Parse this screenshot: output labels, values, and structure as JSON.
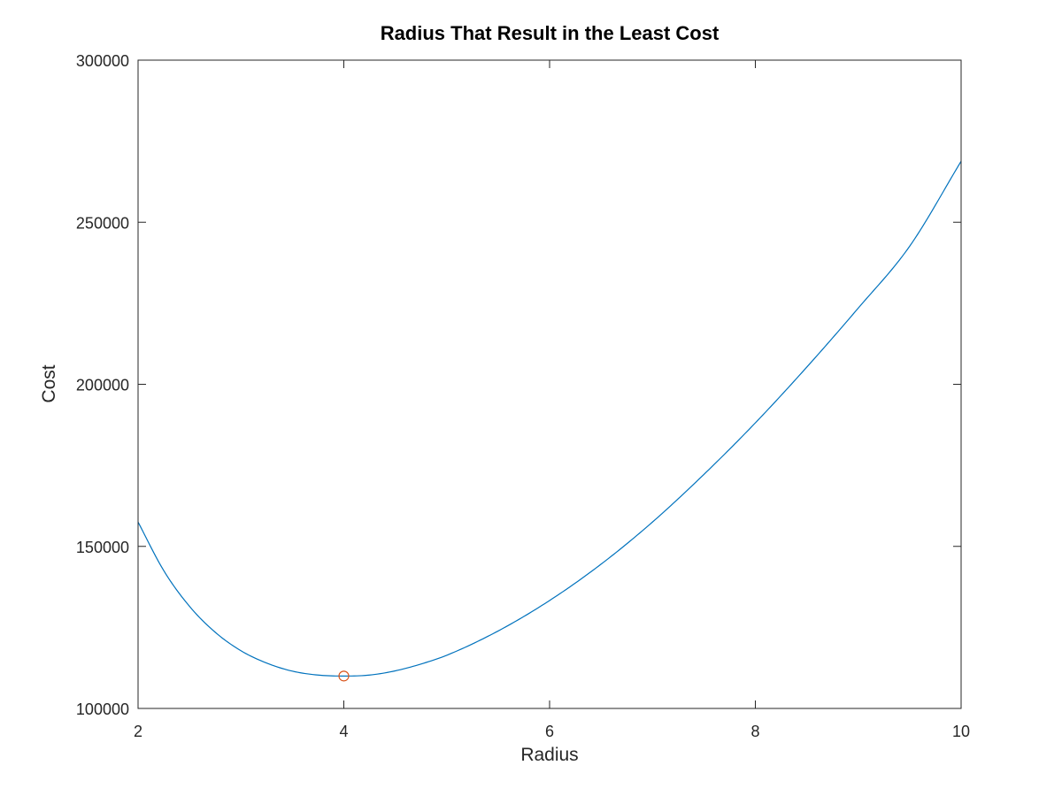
{
  "chart_data": {
    "type": "line",
    "title": "Radius That Result in the Least Cost",
    "xlabel": "Radius",
    "ylabel": "Cost",
    "xlim": [
      2,
      10
    ],
    "ylim": [
      100000,
      300000
    ],
    "xticks": [
      2,
      4,
      6,
      8,
      10
    ],
    "yticks": [
      100000,
      150000,
      200000,
      250000,
      300000
    ],
    "xtick_labels": [
      "2",
      "4",
      "6",
      "8",
      "10"
    ],
    "ytick_labels": [
      "100000",
      "150000",
      "200000",
      "250000",
      "300000"
    ],
    "grid": false,
    "box": true,
    "series": [
      {
        "style": "line",
        "color": "#0072bd",
        "x": [
          2,
          2.25,
          2.5,
          2.75,
          3,
          3.25,
          3.5,
          3.75,
          4,
          4.25,
          4.5,
          4.75,
          5,
          5.5,
          6,
          6.5,
          7,
          7.5,
          8,
          8.5,
          9,
          9.5,
          10
        ],
        "y": [
          157500,
          142500,
          131500,
          123500,
          117800,
          114000,
          111500,
          110300,
          110000,
          110300,
          111600,
          113700,
          116400,
          123900,
          133300,
          144500,
          157500,
          172200,
          188100,
          205300,
          223500,
          242600,
          268800
        ]
      },
      {
        "style": "marker",
        "marker": "circle",
        "color": "#d95319",
        "x": [
          4
        ],
        "y": [
          110000
        ]
      }
    ]
  }
}
